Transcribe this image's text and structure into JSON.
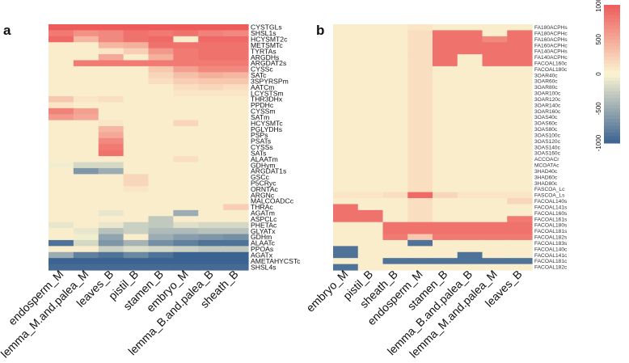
{
  "chart_data": [
    {
      "type": "heatmap",
      "panel_label": "a",
      "columns": [
        "endosperm_M",
        "lemma_M.and.palea_M",
        "leaves_B",
        "pistil_B",
        "stamen_B",
        "embryo_M",
        "lemma_B.and.palea_B",
        "sheath_B"
      ],
      "rows": [
        "CYSTGLs",
        "SHSL1s",
        "HCYSMT2c",
        "METSMTc",
        "TYRTAs",
        "ARGDHs",
        "ARGDAT2s",
        "CYSSc",
        "SATc",
        "3SPYRSPm",
        "AATCm",
        "LCYSTSm",
        "THR3DHx",
        "PPDHc",
        "CYSSm",
        "SATm",
        "HCYSMTc",
        "PGLYDHs",
        "PSPs",
        "PSATs",
        "CYSSs",
        "SATs",
        "ALAATm",
        "GDHym",
        "ARGDAT1s",
        "GSCc",
        "P5CRyc",
        "ORNTAc",
        "ARGNc",
        "MALCOADCc",
        "THRAc",
        "AGATm",
        "ASPCLc",
        "PHETAc",
        "GLYATx",
        "GDHm",
        "ALAATc",
        "PPOAs",
        "AGATx",
        "AMETAHYCSTc",
        "SHSL4s"
      ],
      "values": [
        [
          1000,
          1000,
          1000,
          1000,
          1000,
          1000,
          1000,
          1000
        ],
        [
          800,
          650,
          700,
          850,
          800,
          850,
          750,
          700
        ],
        [
          900,
          400,
          700,
          850,
          900,
          50,
          900,
          900
        ],
        [
          50,
          50,
          400,
          450,
          850,
          850,
          850,
          850
        ],
        [
          50,
          50,
          100,
          250,
          600,
          800,
          850,
          850
        ],
        [
          50,
          50,
          500,
          50,
          450,
          800,
          850,
          850
        ],
        [
          50,
          800,
          800,
          800,
          800,
          800,
          800,
          800
        ],
        [
          50,
          50,
          50,
          50,
          300,
          550,
          700,
          700
        ],
        [
          50,
          50,
          50,
          50,
          200,
          350,
          450,
          400
        ],
        [
          50,
          50,
          50,
          50,
          150,
          250,
          300,
          300
        ],
        [
          50,
          50,
          50,
          50,
          50,
          150,
          200,
          150
        ],
        [
          50,
          50,
          50,
          50,
          50,
          100,
          100,
          100
        ],
        [
          300,
          100,
          150,
          50,
          50,
          50,
          50,
          50
        ],
        [
          100,
          50,
          50,
          50,
          50,
          50,
          50,
          50
        ],
        [
          750,
          550,
          50,
          50,
          50,
          50,
          50,
          50
        ],
        [
          600,
          500,
          50,
          50,
          50,
          50,
          50,
          50
        ],
        [
          50,
          50,
          100,
          50,
          50,
          200,
          50,
          50
        ],
        [
          50,
          50,
          400,
          50,
          50,
          50,
          50,
          50
        ],
        [
          50,
          50,
          500,
          50,
          50,
          50,
          50,
          50
        ],
        [
          50,
          50,
          700,
          50,
          50,
          50,
          50,
          50
        ],
        [
          50,
          50,
          800,
          50,
          50,
          50,
          50,
          50
        ],
        [
          50,
          50,
          850,
          50,
          50,
          50,
          50,
          50
        ],
        [
          50,
          50,
          50,
          50,
          50,
          150,
          50,
          50
        ],
        [
          -50,
          -200,
          -200,
          50,
          50,
          50,
          50,
          50
        ],
        [
          50,
          -650,
          -500,
          50,
          50,
          50,
          50,
          50
        ],
        [
          50,
          50,
          50,
          200,
          50,
          50,
          50,
          50
        ],
        [
          50,
          50,
          50,
          200,
          50,
          50,
          50,
          50
        ],
        [
          50,
          50,
          50,
          100,
          50,
          50,
          50,
          50
        ],
        [
          50,
          50,
          50,
          50,
          50,
          50,
          50,
          50
        ],
        [
          50,
          50,
          50,
          50,
          50,
          50,
          50,
          50
        ],
        [
          50,
          50,
          50,
          50,
          50,
          50,
          50,
          250
        ],
        [
          50,
          50,
          -100,
          50,
          50,
          -500,
          50,
          50
        ],
        [
          50,
          50,
          50,
          50,
          -300,
          50,
          50,
          50
        ],
        [
          -100,
          50,
          -100,
          -250,
          -300,
          -150,
          -200,
          -200
        ],
        [
          50,
          -100,
          -350,
          -250,
          -400,
          -400,
          -350,
          -350
        ],
        [
          50,
          -50,
          -550,
          50,
          -500,
          -600,
          -650,
          -700
        ],
        [
          -900,
          -200,
          -650,
          -450,
          -700,
          -800,
          -900,
          -900
        ],
        [
          50,
          50,
          -250,
          -150,
          -200,
          -250,
          -300,
          -300
        ],
        [
          -500,
          -800,
          -900,
          -750,
          -900,
          -1000,
          -1000,
          -1000
        ],
        [
          -1000,
          -1000,
          -1000,
          -1000,
          -1000,
          -1000,
          -1000,
          -1000
        ],
        [
          -950,
          -950,
          -950,
          -950,
          -950,
          -950,
          -950,
          -950
        ]
      ]
    },
    {
      "type": "heatmap",
      "panel_label": "b",
      "columns": [
        "embryo_M",
        "pistil_B",
        "sheath_B",
        "endosperm_M",
        "stamen_B",
        "lemma_B.and.palea_B",
        "lemma_M.and.palea_M",
        "leaves_B"
      ],
      "rows": [
        "FA180ACPHs",
        "FA180ACPHc",
        "FA160ACPHs",
        "FA160ACPHc",
        "FA140ACPHs",
        "FA140ACPHc",
        "FACOAL160c",
        "FACOAL180c",
        "3OAR40c",
        "3OAR60c",
        "3OAR80c",
        "3OAR100c",
        "3OAR120c",
        "3OAR140c",
        "3OAR160c",
        "3OAS40c",
        "3OAS60c",
        "3OAS80c",
        "3OAS100c",
        "3OAS120c",
        "3OAS140c",
        "3OAS160c",
        "ACCOACr",
        "MCOATAc",
        "3HAD40c",
        "3HAD60c",
        "3HAD80c",
        "FASCOA_Lc",
        "FASCOA_Ls",
        "FACOAL140s",
        "FACOAL141s",
        "FACOAL160s",
        "FACOAL161s",
        "FACOAL180s",
        "FACOAL181s",
        "FACOAL182s",
        "FACOAL183s",
        "FACOAL140c",
        "FACOAL141c",
        "FACOAL181c",
        "FACOAL182c"
      ],
      "values": [
        [
          50,
          50,
          50,
          100,
          50,
          50,
          50,
          50
        ],
        [
          50,
          50,
          50,
          150,
          850,
          850,
          50,
          850
        ],
        [
          50,
          50,
          50,
          150,
          850,
          850,
          700,
          850
        ],
        [
          50,
          50,
          50,
          150,
          850,
          850,
          850,
          850
        ],
        [
          50,
          50,
          50,
          150,
          850,
          850,
          850,
          850
        ],
        [
          50,
          50,
          50,
          150,
          850,
          50,
          850,
          850
        ],
        [
          50,
          50,
          50,
          150,
          850,
          50,
          850,
          850
        ],
        [
          50,
          50,
          50,
          150,
          50,
          50,
          50,
          50
        ],
        [
          50,
          50,
          50,
          150,
          50,
          50,
          50,
          50
        ],
        [
          50,
          50,
          50,
          150,
          50,
          50,
          50,
          50
        ],
        [
          50,
          50,
          50,
          150,
          50,
          50,
          50,
          50
        ],
        [
          50,
          50,
          50,
          150,
          50,
          50,
          50,
          50
        ],
        [
          50,
          50,
          50,
          150,
          50,
          50,
          50,
          50
        ],
        [
          50,
          50,
          50,
          150,
          50,
          50,
          50,
          50
        ],
        [
          50,
          50,
          50,
          150,
          50,
          50,
          50,
          50
        ],
        [
          50,
          50,
          50,
          150,
          50,
          50,
          50,
          50
        ],
        [
          50,
          50,
          50,
          150,
          50,
          50,
          50,
          50
        ],
        [
          50,
          50,
          50,
          150,
          50,
          50,
          50,
          50
        ],
        [
          50,
          50,
          50,
          150,
          50,
          50,
          50,
          50
        ],
        [
          50,
          50,
          50,
          150,
          50,
          50,
          50,
          50
        ],
        [
          50,
          50,
          50,
          150,
          50,
          50,
          50,
          50
        ],
        [
          50,
          50,
          50,
          150,
          50,
          50,
          50,
          50
        ],
        [
          50,
          50,
          50,
          150,
          50,
          50,
          50,
          50
        ],
        [
          50,
          50,
          50,
          150,
          50,
          50,
          50,
          50
        ],
        [
          50,
          50,
          50,
          150,
          50,
          50,
          50,
          50
        ],
        [
          50,
          50,
          50,
          150,
          50,
          50,
          50,
          50
        ],
        [
          50,
          50,
          50,
          150,
          50,
          50,
          50,
          50
        ],
        [
          50,
          50,
          50,
          150,
          50,
          50,
          50,
          50
        ],
        [
          100,
          100,
          150,
          900,
          200,
          100,
          100,
          100
        ],
        [
          50,
          50,
          50,
          150,
          50,
          50,
          50,
          200
        ],
        [
          850,
          50,
          50,
          150,
          50,
          50,
          50,
          50
        ],
        [
          850,
          850,
          50,
          150,
          50,
          50,
          50,
          50
        ],
        [
          850,
          850,
          50,
          150,
          50,
          50,
          50,
          800
        ],
        [
          50,
          50,
          850,
          850,
          850,
          850,
          850,
          850
        ],
        [
          50,
          50,
          850,
          850,
          850,
          850,
          850,
          850
        ],
        [
          50,
          50,
          800,
          300,
          800,
          800,
          800,
          800
        ],
        [
          50,
          50,
          50,
          -900,
          50,
          50,
          50,
          50
        ],
        [
          -900,
          50,
          50,
          50,
          50,
          50,
          50,
          50
        ],
        [
          -900,
          50,
          50,
          50,
          50,
          -900,
          50,
          50
        ],
        [
          50,
          50,
          -900,
          -900,
          -900,
          -900,
          -900,
          -900
        ],
        [
          -900,
          50,
          50,
          50,
          50,
          50,
          50,
          50
        ]
      ]
    }
  ],
  "legend": {
    "ticks": [
      1000,
      500,
      0,
      -500,
      -1000
    ]
  },
  "colors": {
    "high": "#ee5b5b",
    "mid": "#fbf5d2",
    "low": "#3b6391"
  }
}
